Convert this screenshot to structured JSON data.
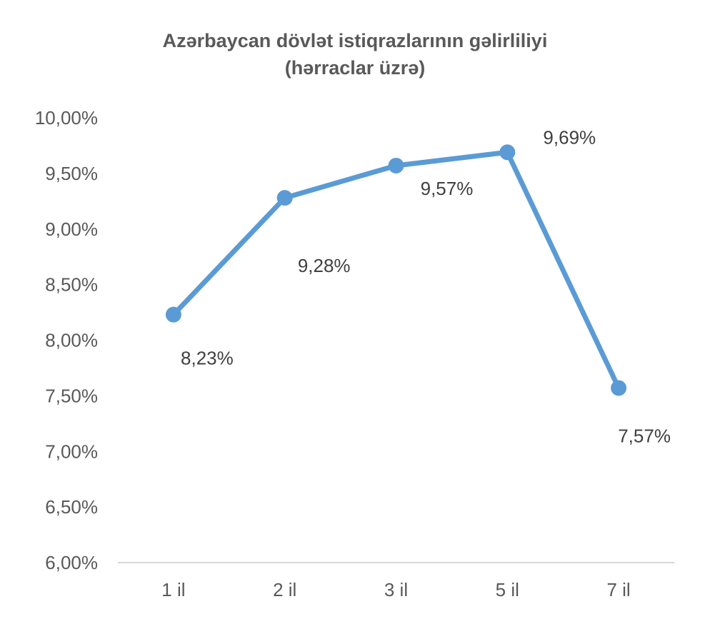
{
  "chart_data": {
    "type": "line",
    "title": "Azərbaycan dövlət istiqrazlarının gəlirliliyi",
    "subtitle": "(hərraclar üzrə)",
    "categories": [
      "1 il",
      "2 il",
      "3 il",
      "5 il",
      "7 il"
    ],
    "series": [
      {
        "values": [
          8.23,
          9.28,
          9.57,
          9.69,
          7.57
        ],
        "labels": [
          "8,23%",
          "9,28%",
          "9,57%",
          "9,69%",
          "7,57%"
        ],
        "color": "#5b9bd5"
      }
    ],
    "ylim": [
      6.0,
      10.0
    ],
    "yticks": [
      "6,00%",
      "6,50%",
      "7,00%",
      "7,50%",
      "8,00%",
      "8,50%",
      "9,00%",
      "9,50%",
      "10,00%"
    ],
    "grid": false,
    "legend": "none",
    "axis_color": "#d9d9d9"
  }
}
